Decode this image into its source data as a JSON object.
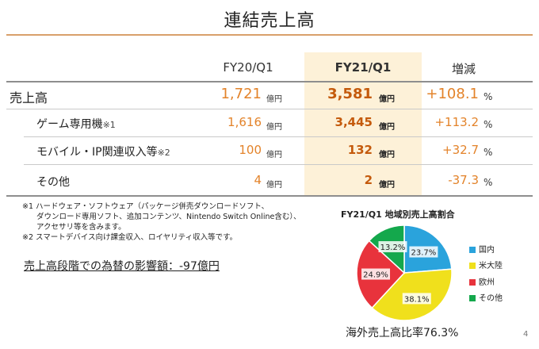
{
  "title": "連結売上高",
  "columns": {
    "prev": "FY20/Q1",
    "curr": "FY21/Q1",
    "change": "増減"
  },
  "unit": "億円",
  "rows": [
    {
      "label": "売上高",
      "note": "",
      "prev": "1,721",
      "curr": "3,581",
      "change": "+108.1",
      "change_unit": "%"
    },
    {
      "label": "ゲーム専用機",
      "note": "※1",
      "prev": "1,616",
      "curr": "3,445",
      "change": "+113.2",
      "change_unit": "%"
    },
    {
      "label": "モバイル・IP関連収入等",
      "note": "※2",
      "prev": "100",
      "curr": "132",
      "change": "+32.7",
      "change_unit": "%"
    },
    {
      "label": "その他",
      "note": "",
      "prev": "4",
      "curr": "2",
      "change": "-37.3",
      "change_unit": "%"
    }
  ],
  "footnotes": [
    "※1 ハードウェア・ソフトウェア（パッケージ併売ダウンロードソフト、",
    "ダウンロード専用ソフト、追加コンテンツ、Nintendo Switch Online含む）、",
    "アクセサリ等を含みます。",
    "※2 スマートデバイス向け課金収入、ロイヤリティ収入等です。"
  ],
  "fx_impact": "売上高段階での為替の影響額：-97億円",
  "overseas_ratio": "海外売上高比率76.3%",
  "page_number": "4",
  "chart_data": {
    "type": "pie",
    "title": "FY21/Q1 地域別売上高割合",
    "categories": [
      "国内",
      "米大陸",
      "欧州",
      "その他"
    ],
    "values": [
      23.7,
      38.1,
      24.9,
      13.2
    ],
    "labels": [
      "23.7%",
      "38.1%",
      "24.9%",
      "13.2%"
    ],
    "colors": [
      "#2aa3dc",
      "#f0e01c",
      "#e8333c",
      "#14a84c"
    ],
    "start": "12 o'clock, clockwise",
    "legend_position": "right"
  }
}
